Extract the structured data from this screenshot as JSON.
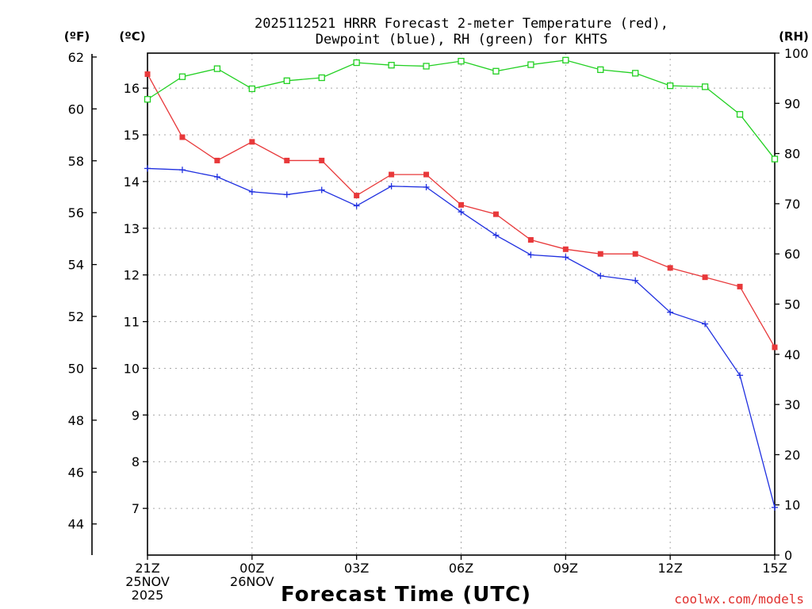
{
  "chart_data": {
    "type": "line",
    "title": [
      "2025112521 HRRR Forecast 2-meter Temperature (red),",
      "Dewpoint (blue), RH (green) for KHTS"
    ],
    "xlabel": "Forecast Time (UTC)",
    "credit": "coolwx.com/models",
    "x_hours": [
      0,
      1,
      2,
      3,
      4,
      5,
      6,
      7,
      8,
      9,
      10,
      11,
      12,
      13,
      14,
      15,
      16,
      17,
      18
    ],
    "x_ticks": [
      {
        "hour": 0,
        "lines": [
          "21Z",
          "25NOV",
          "2025"
        ]
      },
      {
        "hour": 3,
        "lines": [
          "00Z",
          "26NOV"
        ]
      },
      {
        "hour": 6,
        "lines": [
          "03Z"
        ]
      },
      {
        "hour": 9,
        "lines": [
          "06Z"
        ]
      },
      {
        "hour": 12,
        "lines": [
          "09Z"
        ]
      },
      {
        "hour": 15,
        "lines": [
          "12Z"
        ]
      },
      {
        "hour": 18,
        "lines": [
          "15Z"
        ]
      }
    ],
    "axes": {
      "fahrenheit": {
        "label": "(ºF)",
        "ticks": [
          44,
          46,
          48,
          50,
          52,
          54,
          56,
          58,
          60,
          62
        ]
      },
      "celsius": {
        "label": "(ºC)",
        "ylim": [
          6.0,
          16.75
        ],
        "ticks": [
          7,
          8,
          9,
          10,
          11,
          12,
          13,
          14,
          15,
          16
        ]
      },
      "rh": {
        "label": "(RH)",
        "ylim": [
          0,
          100
        ],
        "ticks": [
          0,
          10,
          20,
          30,
          40,
          50,
          60,
          70,
          80,
          90,
          100
        ]
      }
    },
    "series": [
      {
        "name": "Temperature",
        "unit": "C",
        "color": "#e8383a",
        "marker": "filled-square",
        "values": [
          16.3,
          14.95,
          14.45,
          14.85,
          14.45,
          14.45,
          13.7,
          14.15,
          14.15,
          13.5,
          13.3,
          12.75,
          12.55,
          12.45,
          12.45,
          12.15,
          11.95,
          11.75,
          10.45
        ]
      },
      {
        "name": "Dewpoint",
        "unit": "C",
        "color": "#2030e0",
        "marker": "plus",
        "values": [
          14.28,
          14.25,
          14.1,
          13.78,
          13.72,
          13.82,
          13.48,
          13.9,
          13.88,
          13.35,
          12.85,
          12.43,
          12.38,
          11.98,
          11.88,
          11.2,
          10.95,
          9.85,
          7.02
        ]
      },
      {
        "name": "RH",
        "unit": "%",
        "color": "#22d022",
        "marker": "open-square",
        "values": [
          90.8,
          95.3,
          96.9,
          92.9,
          94.5,
          95.1,
          98.1,
          97.6,
          97.4,
          98.4,
          96.4,
          97.7,
          98.6,
          96.7,
          96.0,
          93.5,
          93.3,
          87.8,
          78.9
        ]
      }
    ]
  }
}
